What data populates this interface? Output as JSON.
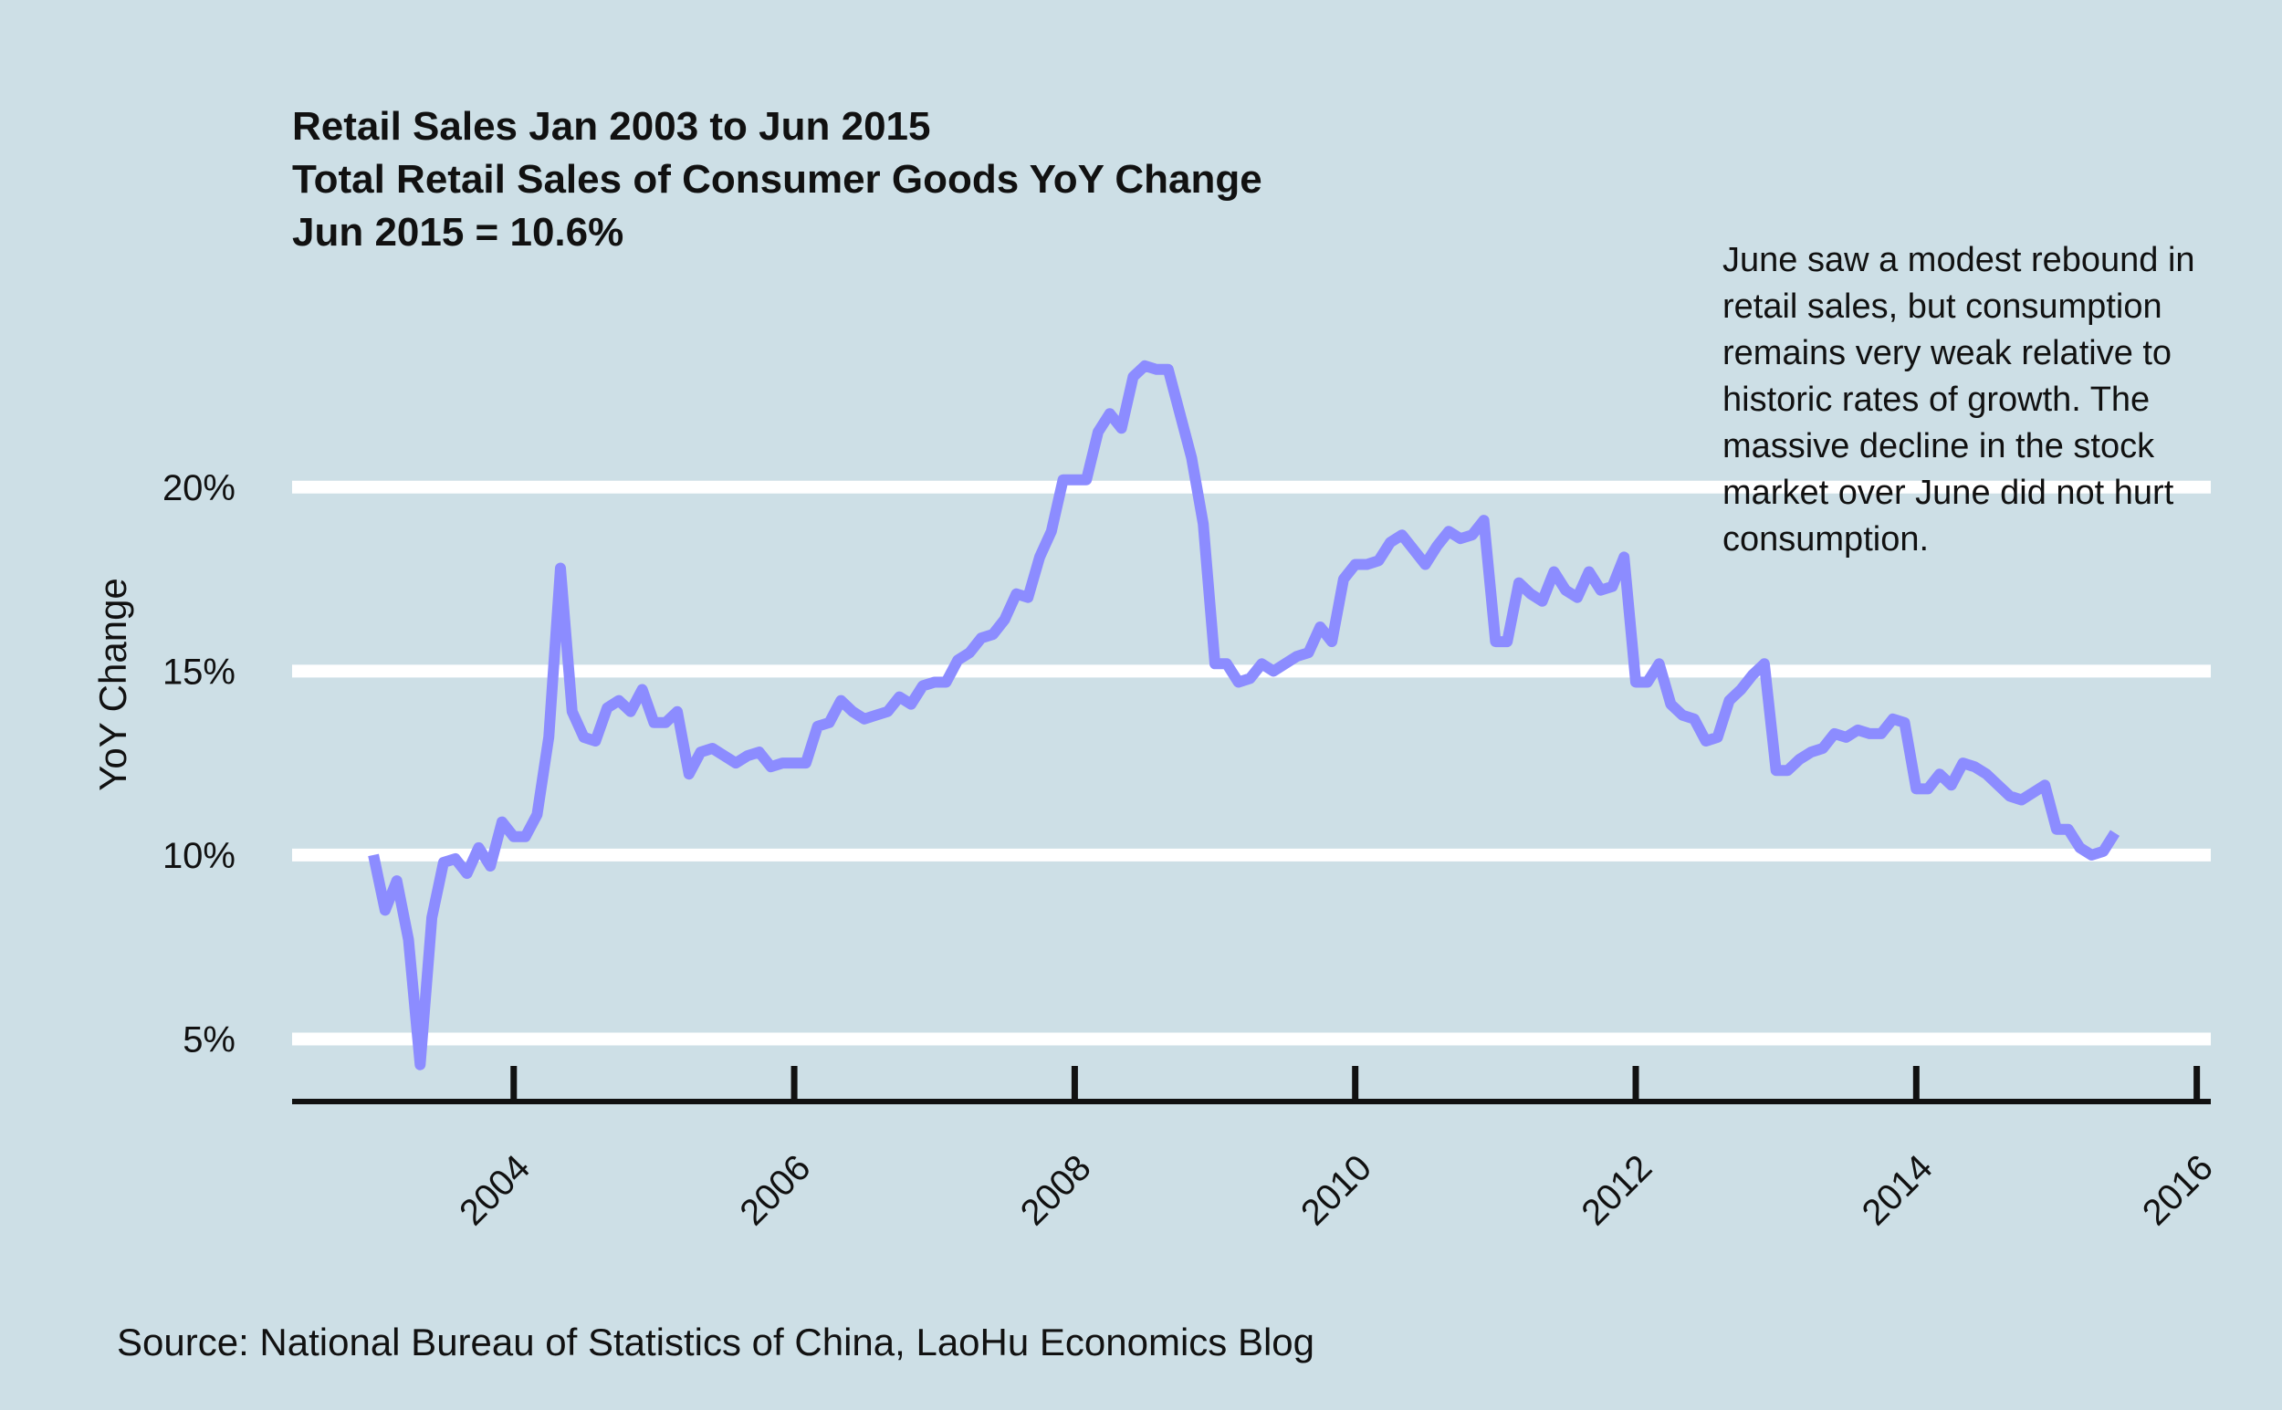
{
  "colors": {
    "background": "#cddfe6",
    "gridline": "#ffffff",
    "series_line": "#8c8cff",
    "axis": "#111111",
    "text": "#111111"
  },
  "chart_data": {
    "type": "line",
    "title_lines": [
      "Retail Sales Jan 2003 to Jun 2015",
      "Total Retail Sales of Consumer Goods YoY Change",
      "Jun 2015 = 10.6%"
    ],
    "xlabel": "",
    "ylabel": "YoY Change",
    "x_ticks": [
      "2004",
      "2006",
      "2008",
      "2010",
      "2012",
      "2014",
      "2016"
    ],
    "y_ticks": [
      "5%",
      "10%",
      "15%",
      "20%"
    ],
    "xlim": [
      2002.42,
      2016.1
    ],
    "ylim": [
      3.35,
      25.8
    ],
    "grid": "horizontal",
    "legend": "none",
    "annotation_lines": [
      "June saw a modest rebound in",
      "retail sales, but consumption",
      "remains very weak relative to",
      "historic rates of growth.  The",
      "massive decline in the stock",
      "market over June did not hurt",
      "consumption."
    ],
    "source": "Source: National Bureau of Statistics of China, LaoHu Economics Blog",
    "series": [
      {
        "points": [
          [
            "2003-01",
            10.0
          ],
          [
            "2003-02",
            8.5
          ],
          [
            "2003-03",
            9.3
          ],
          [
            "2003-04",
            7.7
          ],
          [
            "2003-05",
            4.3
          ],
          [
            "2003-06",
            8.3
          ],
          [
            "2003-07",
            9.8
          ],
          [
            "2003-08",
            9.9
          ],
          [
            "2003-09",
            9.5
          ],
          [
            "2003-10",
            10.2
          ],
          [
            "2003-11",
            9.7
          ],
          [
            "2003-12",
            10.9
          ],
          [
            "2004-01",
            10.5
          ],
          [
            "2004-02",
            10.5
          ],
          [
            "2004-03",
            11.1
          ],
          [
            "2004-04",
            13.2
          ],
          [
            "2004-05",
            17.8
          ],
          [
            "2004-06",
            13.9
          ],
          [
            "2004-07",
            13.2
          ],
          [
            "2004-08",
            13.1
          ],
          [
            "2004-09",
            14.0
          ],
          [
            "2004-10",
            14.2
          ],
          [
            "2004-11",
            13.9
          ],
          [
            "2004-12",
            14.5
          ],
          [
            "2005-01",
            13.6
          ],
          [
            "2005-02",
            13.6
          ],
          [
            "2005-03",
            13.9
          ],
          [
            "2005-04",
            12.2
          ],
          [
            "2005-05",
            12.8
          ],
          [
            "2005-06",
            12.9
          ],
          [
            "2005-07",
            12.7
          ],
          [
            "2005-08",
            12.5
          ],
          [
            "2005-09",
            12.7
          ],
          [
            "2005-10",
            12.8
          ],
          [
            "2005-11",
            12.4
          ],
          [
            "2005-12",
            12.5
          ],
          [
            "2006-01",
            12.5
          ],
          [
            "2006-02",
            12.5
          ],
          [
            "2006-03",
            13.5
          ],
          [
            "2006-04",
            13.6
          ],
          [
            "2006-05",
            14.2
          ],
          [
            "2006-06",
            13.9
          ],
          [
            "2006-07",
            13.7
          ],
          [
            "2006-08",
            13.8
          ],
          [
            "2006-09",
            13.9
          ],
          [
            "2006-10",
            14.3
          ],
          [
            "2006-11",
            14.1
          ],
          [
            "2006-12",
            14.6
          ],
          [
            "2007-01",
            14.7
          ],
          [
            "2007-02",
            14.7
          ],
          [
            "2007-03",
            15.3
          ],
          [
            "2007-04",
            15.5
          ],
          [
            "2007-05",
            15.9
          ],
          [
            "2007-06",
            16.0
          ],
          [
            "2007-07",
            16.4
          ],
          [
            "2007-08",
            17.1
          ],
          [
            "2007-09",
            17.0
          ],
          [
            "2007-10",
            18.1
          ],
          [
            "2007-11",
            18.8
          ],
          [
            "2007-12",
            20.2
          ],
          [
            "2008-01",
            20.2
          ],
          [
            "2008-02",
            20.2
          ],
          [
            "2008-03",
            21.5
          ],
          [
            "2008-04",
            22.0
          ],
          [
            "2008-05",
            21.6
          ],
          [
            "2008-06",
            23.0
          ],
          [
            "2008-07",
            23.3
          ],
          [
            "2008-08",
            23.2
          ],
          [
            "2008-09",
            23.2
          ],
          [
            "2008-10",
            22.0
          ],
          [
            "2008-11",
            20.8
          ],
          [
            "2008-12",
            19.0
          ],
          [
            "2009-01",
            15.2
          ],
          [
            "2009-02",
            15.2
          ],
          [
            "2009-03",
            14.7
          ],
          [
            "2009-04",
            14.8
          ],
          [
            "2009-05",
            15.2
          ],
          [
            "2009-06",
            15.0
          ],
          [
            "2009-07",
            15.2
          ],
          [
            "2009-08",
            15.4
          ],
          [
            "2009-09",
            15.5
          ],
          [
            "2009-10",
            16.2
          ],
          [
            "2009-11",
            15.8
          ],
          [
            "2009-12",
            17.5
          ],
          [
            "2010-01",
            17.9
          ],
          [
            "2010-02",
            17.9
          ],
          [
            "2010-03",
            18.0
          ],
          [
            "2010-04",
            18.5
          ],
          [
            "2010-05",
            18.7
          ],
          [
            "2010-06",
            18.3
          ],
          [
            "2010-07",
            17.9
          ],
          [
            "2010-08",
            18.4
          ],
          [
            "2010-09",
            18.8
          ],
          [
            "2010-10",
            18.6
          ],
          [
            "2010-11",
            18.7
          ],
          [
            "2010-12",
            19.1
          ],
          [
            "2011-01",
            15.8
          ],
          [
            "2011-02",
            15.8
          ],
          [
            "2011-03",
            17.4
          ],
          [
            "2011-04",
            17.1
          ],
          [
            "2011-05",
            16.9
          ],
          [
            "2011-06",
            17.7
          ],
          [
            "2011-07",
            17.2
          ],
          [
            "2011-08",
            17.0
          ],
          [
            "2011-09",
            17.7
          ],
          [
            "2011-10",
            17.2
          ],
          [
            "2011-11",
            17.3
          ],
          [
            "2011-12",
            18.1
          ],
          [
            "2012-01",
            14.7
          ],
          [
            "2012-02",
            14.7
          ],
          [
            "2012-03",
            15.2
          ],
          [
            "2012-04",
            14.1
          ],
          [
            "2012-05",
            13.8
          ],
          [
            "2012-06",
            13.7
          ],
          [
            "2012-07",
            13.1
          ],
          [
            "2012-08",
            13.2
          ],
          [
            "2012-09",
            14.2
          ],
          [
            "2012-10",
            14.5
          ],
          [
            "2012-11",
            14.9
          ],
          [
            "2012-12",
            15.2
          ],
          [
            "2013-01",
            12.3
          ],
          [
            "2013-02",
            12.3
          ],
          [
            "2013-03",
            12.6
          ],
          [
            "2013-04",
            12.8
          ],
          [
            "2013-05",
            12.9
          ],
          [
            "2013-06",
            13.3
          ],
          [
            "2013-07",
            13.2
          ],
          [
            "2013-08",
            13.4
          ],
          [
            "2013-09",
            13.3
          ],
          [
            "2013-10",
            13.3
          ],
          [
            "2013-11",
            13.7
          ],
          [
            "2013-12",
            13.6
          ],
          [
            "2014-01",
            11.8
          ],
          [
            "2014-02",
            11.8
          ],
          [
            "2014-03",
            12.2
          ],
          [
            "2014-04",
            11.9
          ],
          [
            "2014-05",
            12.5
          ],
          [
            "2014-06",
            12.4
          ],
          [
            "2014-07",
            12.2
          ],
          [
            "2014-08",
            11.9
          ],
          [
            "2014-09",
            11.6
          ],
          [
            "2014-10",
            11.5
          ],
          [
            "2014-11",
            11.7
          ],
          [
            "2014-12",
            11.9
          ],
          [
            "2015-01",
            10.7
          ],
          [
            "2015-02",
            10.7
          ],
          [
            "2015-03",
            10.2
          ],
          [
            "2015-04",
            10.0
          ],
          [
            "2015-05",
            10.1
          ],
          [
            "2015-06",
            10.6
          ]
        ]
      }
    ]
  }
}
